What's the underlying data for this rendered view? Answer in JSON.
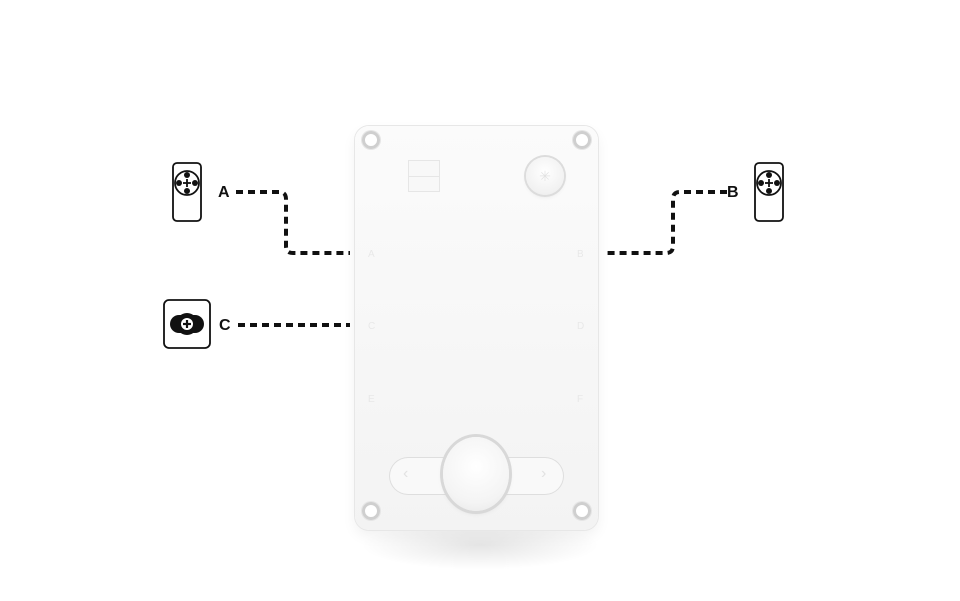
{
  "ports": [
    {
      "id": "A",
      "label": "A",
      "device": "motor-icon"
    },
    {
      "id": "B",
      "label": "B",
      "device": "motor-icon"
    },
    {
      "id": "C",
      "label": "C",
      "device": "sensor-icon"
    }
  ],
  "hub": {
    "side_labels_left": [
      "A",
      "C",
      "E"
    ],
    "side_labels_right": [
      "B",
      "D",
      "F"
    ],
    "icons": [
      "bluetooth-icon",
      "left-arrow-icon",
      "right-arrow-icon"
    ]
  },
  "colors": {
    "line": "#111111",
    "hub_body": "#f7f7f7",
    "hub_edge": "#e3e3e3",
    "background": "#ffffff"
  }
}
